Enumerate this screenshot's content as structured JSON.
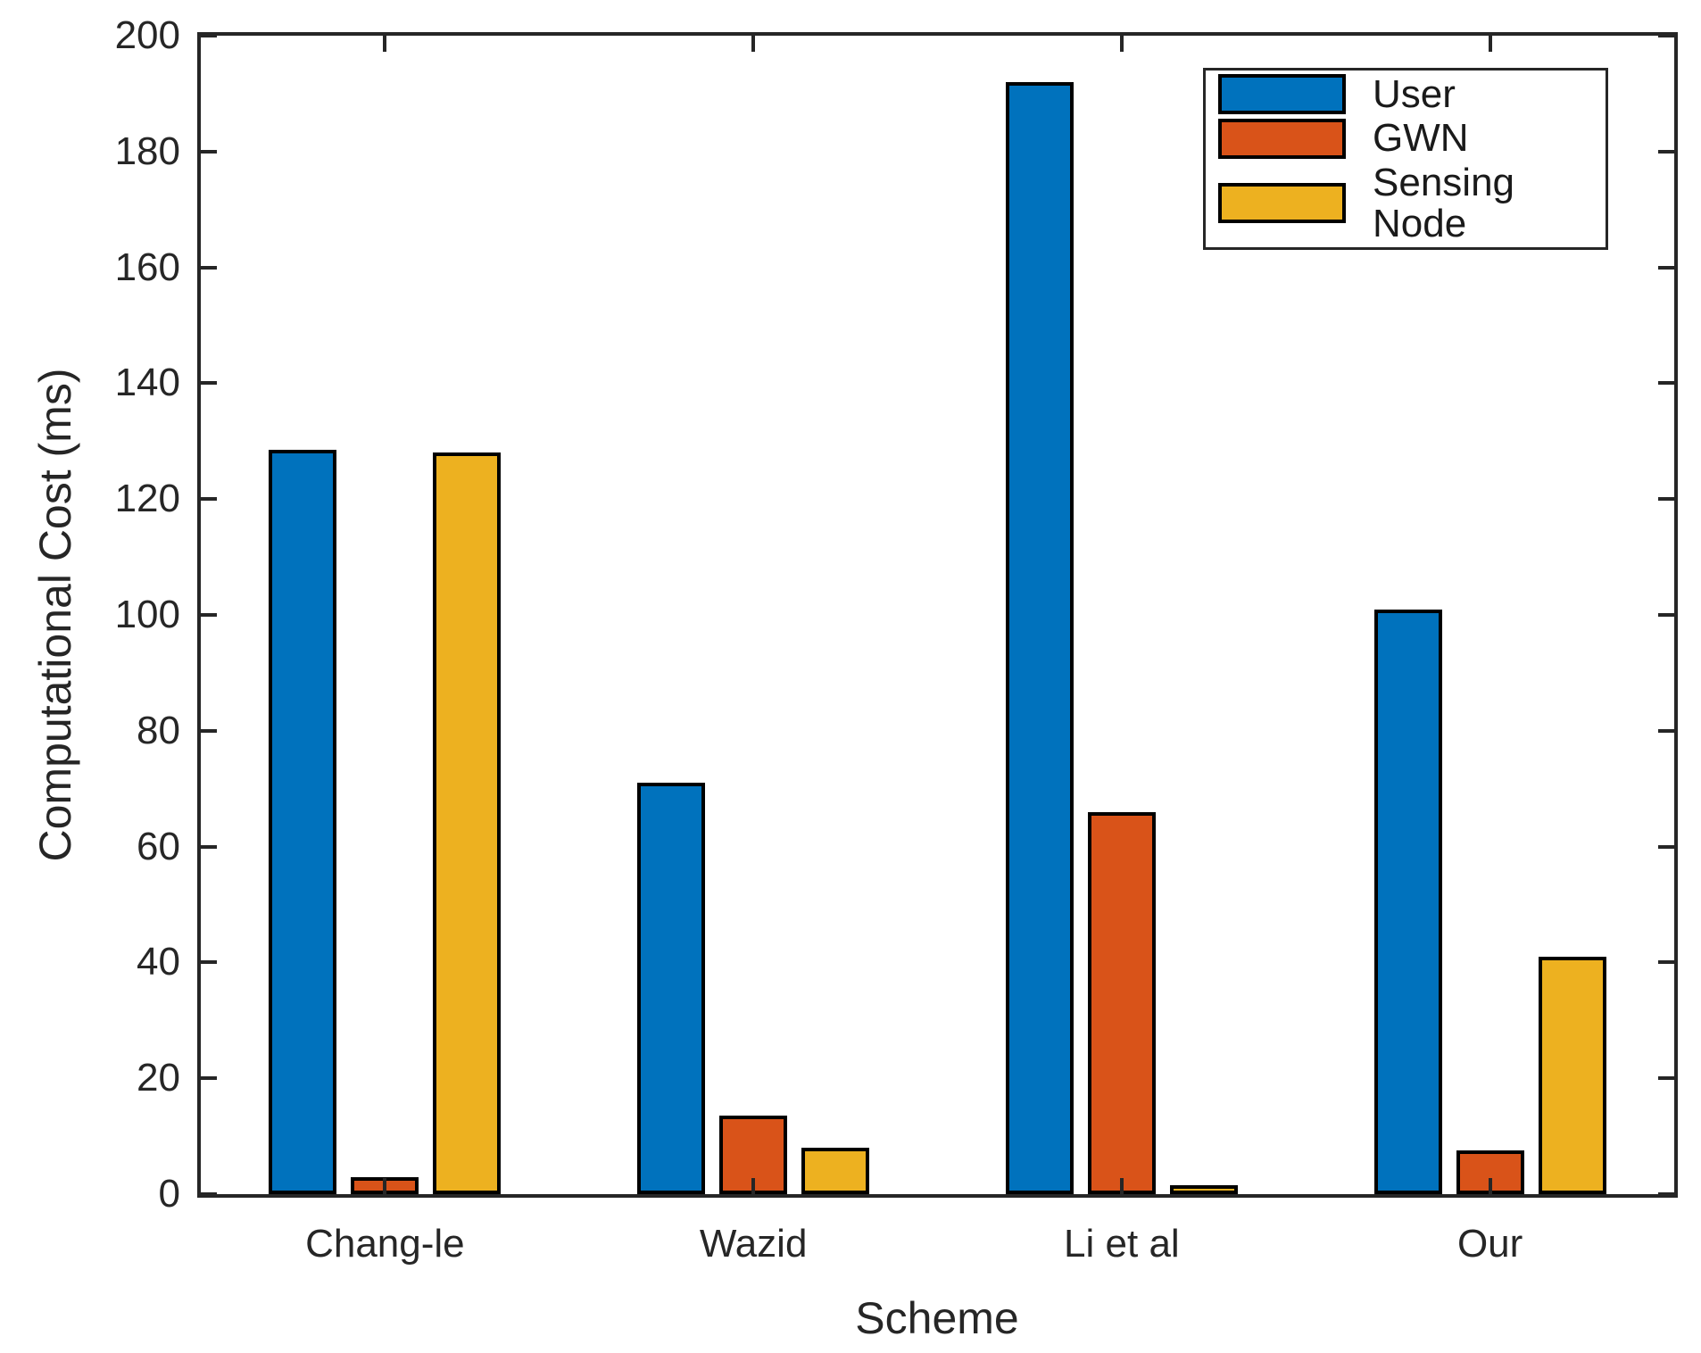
{
  "colors": {
    "background": "#ffffff",
    "axis": "#262626",
    "bar_edge": "#000000",
    "series_user": "#0072BD",
    "series_gwn": "#D95319",
    "series_sensing_node": "#EDB120"
  },
  "chart_data": {
    "type": "bar",
    "title": "",
    "xlabel": "Scheme",
    "ylabel": "Computational Cost (ms)",
    "categories": [
      "Chang-le",
      "Wazid",
      "Li et al",
      "Our"
    ],
    "series": [
      {
        "name": "User",
        "color": "#0072BD",
        "values": [
          128.5,
          71,
          192,
          101
        ]
      },
      {
        "name": "GWN",
        "color": "#D95319",
        "values": [
          3,
          13.5,
          66,
          7.5
        ]
      },
      {
        "name": "Sensing Node",
        "color": "#EDB120",
        "values": [
          128,
          8,
          1.5,
          41
        ]
      }
    ],
    "ylim": [
      0,
      200
    ],
    "yticks": [
      0,
      20,
      40,
      60,
      80,
      100,
      120,
      140,
      160,
      180,
      200
    ],
    "grid": false,
    "legend": {
      "position": "top-right",
      "items": [
        "User",
        "GWN",
        "Sensing Node"
      ]
    }
  }
}
